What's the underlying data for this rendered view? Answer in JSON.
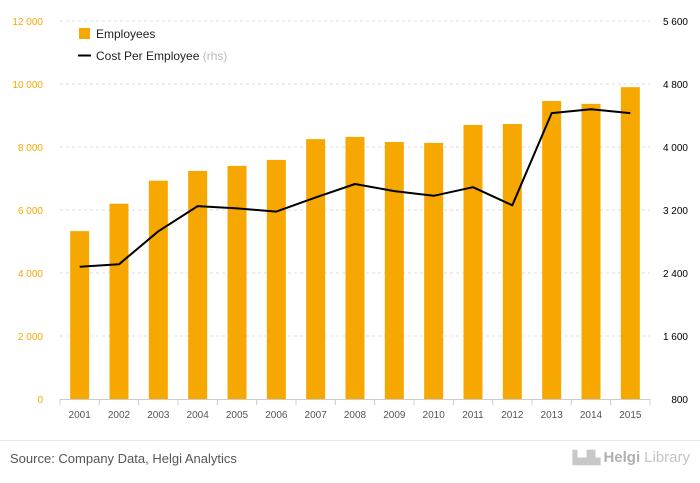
{
  "chart_data": {
    "type": "bar",
    "categories": [
      "2001",
      "2002",
      "2003",
      "2004",
      "2005",
      "2006",
      "2007",
      "2008",
      "2009",
      "2010",
      "2011",
      "2012",
      "2013",
      "2014",
      "2015"
    ],
    "series": [
      {
        "name": "Employees",
        "type": "bar",
        "axis": "left",
        "color": "#f7a800",
        "values": [
          5330,
          6200,
          6930,
          7240,
          7400,
          7590,
          8250,
          8320,
          8160,
          8130,
          8700,
          8730,
          9460,
          9370,
          9900
        ]
      },
      {
        "name": "Cost Per Employee",
        "name_suffix": "(rhs)",
        "type": "line",
        "axis": "right",
        "color": "#000000",
        "values": [
          2480,
          2510,
          2930,
          3250,
          3220,
          3180,
          3360,
          3530,
          3440,
          3380,
          3490,
          3260,
          4430,
          4480,
          4430
        ]
      }
    ],
    "ylim_left": [
      0,
      12000
    ],
    "yticks_left": [
      "0",
      "2 000",
      "4 000",
      "6 000",
      "8 000",
      "10 000",
      "12 000"
    ],
    "ylim_right": [
      800,
      5600
    ],
    "yticks_right": [
      "800",
      "1 600",
      "2 400",
      "3 200",
      "4 000",
      "4 800",
      "5 600"
    ],
    "legend_position": "top-left",
    "grid": "horizontal dashed",
    "colors": {
      "left_axis_text": "#f7a800",
      "right_axis_text": "#000000",
      "grid": "#dddddd"
    }
  },
  "footer": {
    "source": "Source: Company Data, Helgi Analytics",
    "brand_icon": "library-building-icon",
    "brand_a": "Helgi",
    "brand_b": "Library"
  }
}
